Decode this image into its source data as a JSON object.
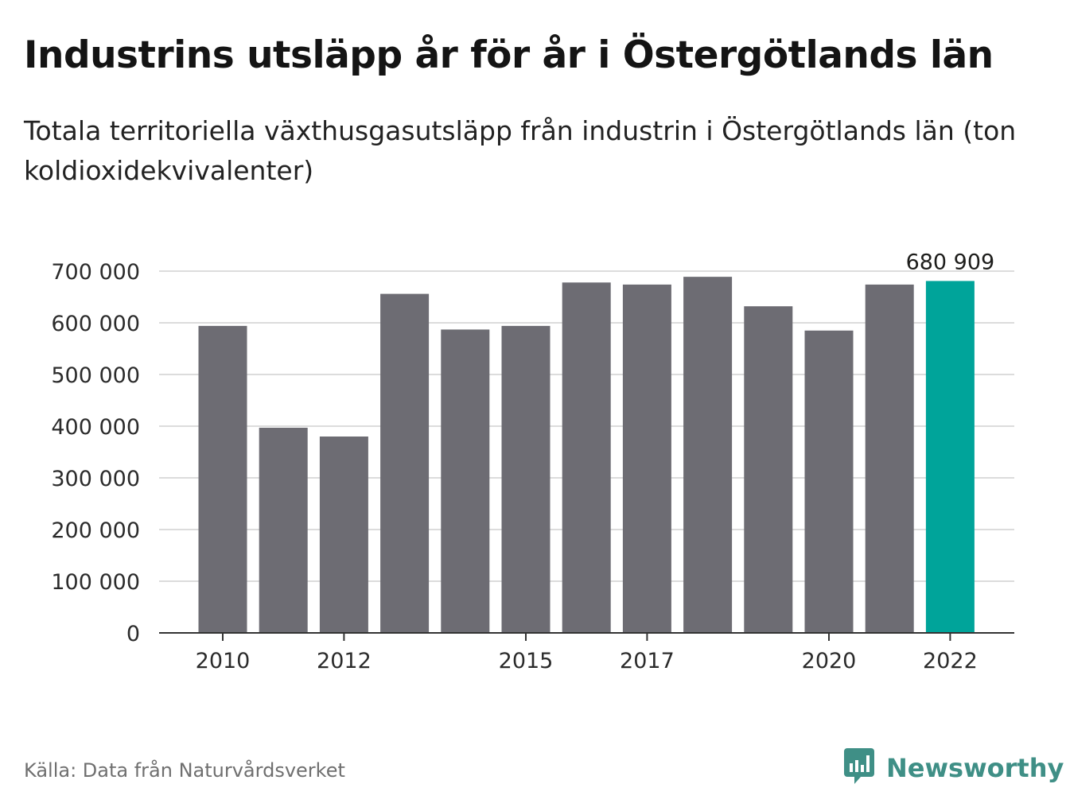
{
  "header": {
    "title": "Industrins utsläpp år för år i Östergötlands län",
    "subtitle": "Totala territoriella växthusgasutsläpp från industrin i Östergötlands län (ton koldioxidekvivalenter)"
  },
  "footer": {
    "source": "Källa: Data från Naturvårdsverket",
    "brand": "Newsworthy"
  },
  "colors": {
    "bar": "#6d6c73",
    "highlight": "#00a49a",
    "grid": "#dcdcdc",
    "axis": "#333333",
    "brand": "#3f8f86"
  },
  "icons": {
    "brand_logo": "newsworthy-logo-icon"
  },
  "chart_data": {
    "type": "bar",
    "title": "Industrins utsläpp år för år i Östergötlands län",
    "subtitle": "Totala territoriella växthusgasutsläpp från industrin i Östergötlands län (ton koldioxidekvivalenter)",
    "xlabel": "",
    "ylabel": "",
    "categories": [
      "2010",
      "2011",
      "2012",
      "2013",
      "2014",
      "2015",
      "2016",
      "2017",
      "2018",
      "2019",
      "2020",
      "2021",
      "2022"
    ],
    "values": [
      594000,
      397000,
      380000,
      656000,
      587000,
      594000,
      678000,
      674000,
      689000,
      632000,
      585000,
      674000,
      680909
    ],
    "highlight_index": 12,
    "highlight_label": "680 909",
    "x_tick_labels": [
      "2010",
      "2012",
      "2015",
      "2017",
      "2020",
      "2022"
    ],
    "y_ticks": [
      0,
      100000,
      200000,
      300000,
      400000,
      500000,
      600000,
      700000
    ],
    "y_tick_labels": [
      "0",
      "100 000",
      "200 000",
      "300 000",
      "400 000",
      "500 000",
      "600 000",
      "700 000"
    ],
    "ylim": [
      0,
      700000
    ],
    "grid": true,
    "legend": "none"
  }
}
